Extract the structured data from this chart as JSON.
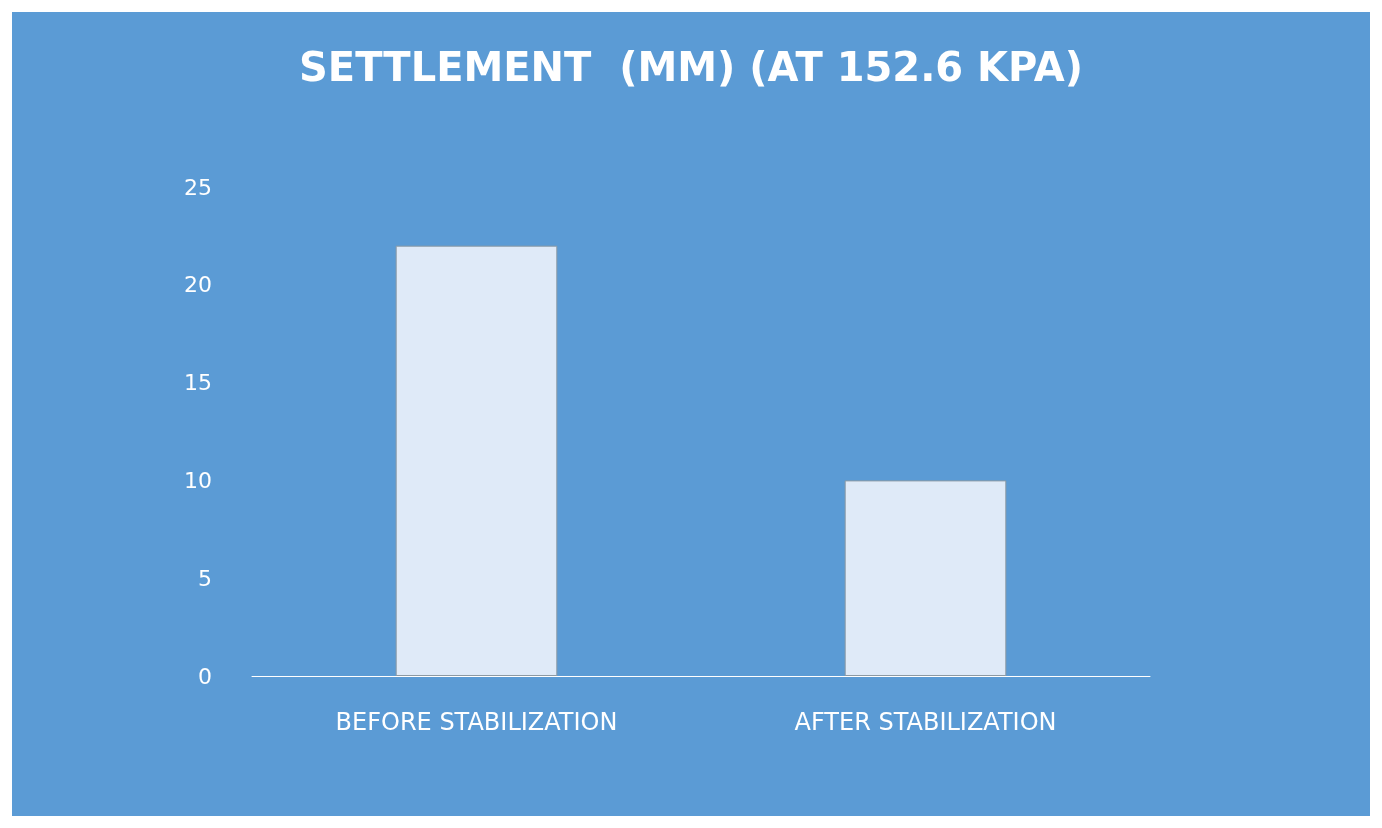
{
  "chart_data": {
    "type": "bar",
    "title": "SETTLEMENT  (MM) (AT 152.6 KPA)",
    "categories": [
      "BEFORE STABILIZATION",
      "AFTER STABILIZATION"
    ],
    "values": [
      22,
      10
    ],
    "color": "#dfeaf8",
    "ylim": [
      0,
      25
    ],
    "yticks": [
      0,
      5,
      10,
      15,
      20,
      25
    ],
    "grid": false
  }
}
